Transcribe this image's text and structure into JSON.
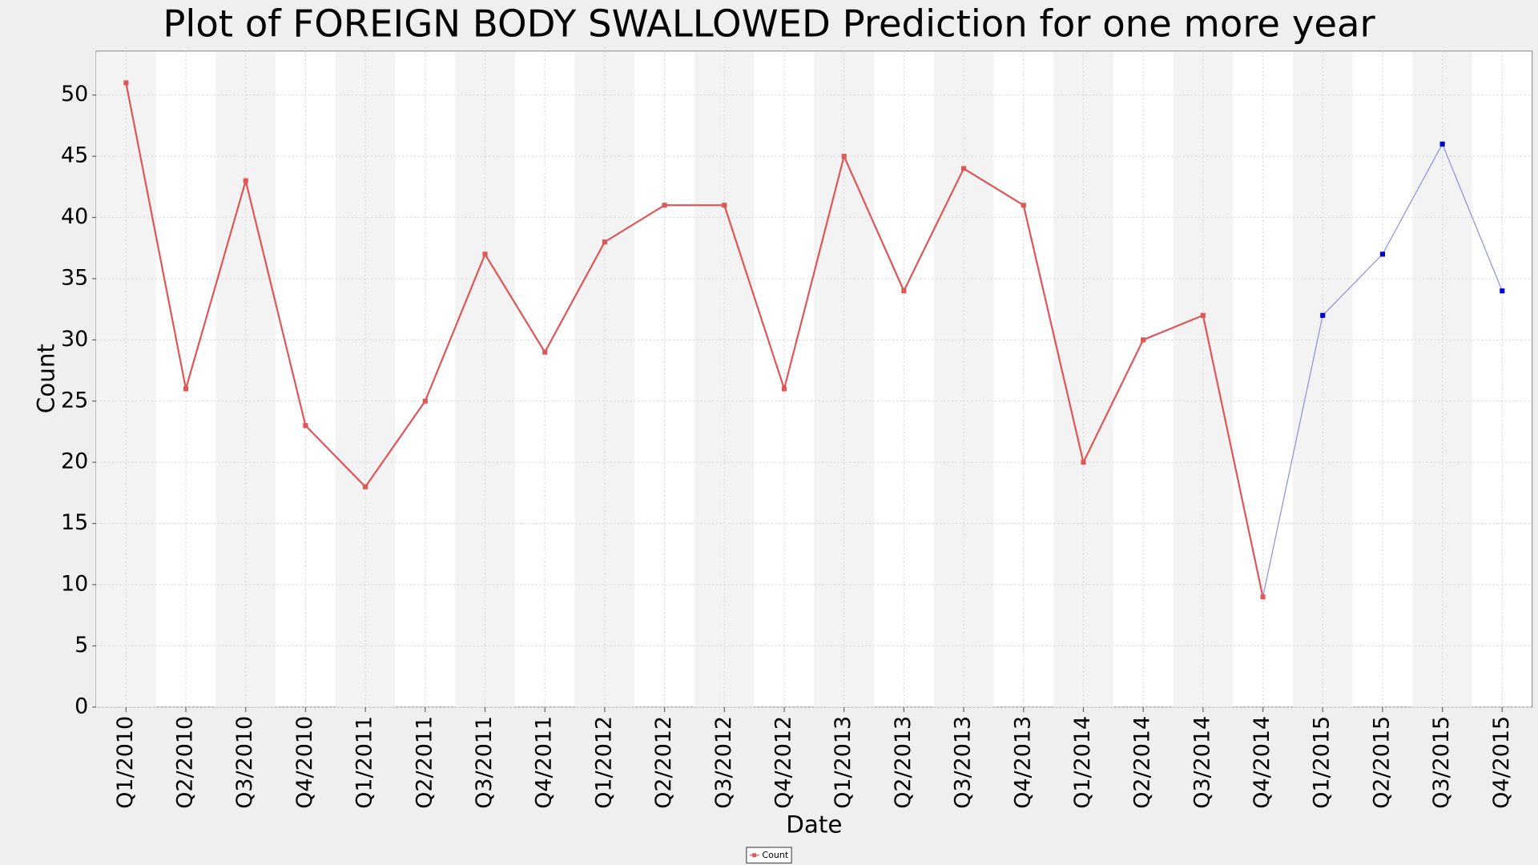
{
  "chart_data": {
    "type": "line",
    "title": "Plot of FOREIGN BODY SWALLOWED Prediction for one more year",
    "x_label": "Date",
    "y_label": "Count",
    "categories": [
      "Q1/2010",
      "Q2/2010",
      "Q3/2010",
      "Q4/2010",
      "Q1/2011",
      "Q2/2011",
      "Q3/2011",
      "Q4/2011",
      "Q1/2012",
      "Q2/2012",
      "Q3/2012",
      "Q4/2012",
      "Q1/2013",
      "Q2/2013",
      "Q3/2013",
      "Q4/2013",
      "Q1/2014",
      "Q2/2014",
      "Q3/2014",
      "Q4/2014",
      "Q1/2015",
      "Q2/2015",
      "Q3/2015",
      "Q4/2015"
    ],
    "series": [
      {
        "name": "Count",
        "color": "#e05555",
        "values": [
          51,
          26,
          43,
          23,
          18,
          25,
          37,
          29,
          38,
          41,
          41,
          26,
          45,
          34,
          44,
          41,
          20,
          30,
          32,
          9,
          null,
          null,
          null,
          null
        ]
      },
      {
        "color": "#0000cc",
        "values": [
          null,
          null,
          null,
          null,
          null,
          null,
          null,
          null,
          null,
          null,
          null,
          null,
          null,
          null,
          null,
          null,
          null,
          null,
          null,
          9,
          32,
          37,
          46,
          34
        ]
      }
    ],
    "ylim": [
      0,
      53.6
    ],
    "yticks": [
      0,
      5,
      10,
      15,
      20,
      25,
      30,
      35,
      40,
      45,
      50
    ],
    "grid": true
  }
}
